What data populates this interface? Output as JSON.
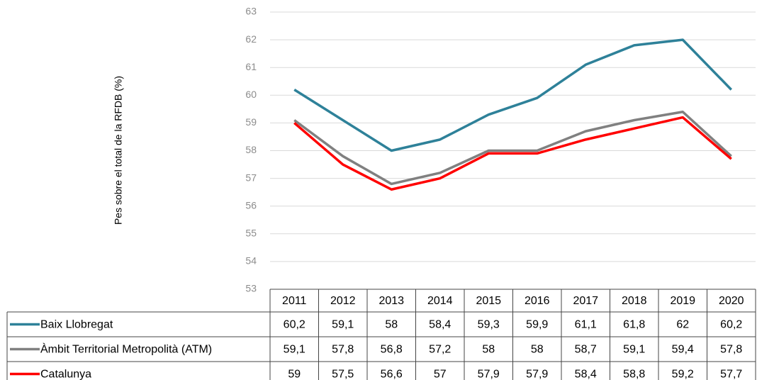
{
  "chart_data": {
    "type": "line",
    "y_label": "Pes sobre el total de la RFDB (%)",
    "categories": [
      "2011",
      "2012",
      "2013",
      "2014",
      "2015",
      "2016",
      "2017",
      "2018",
      "2019",
      "2020"
    ],
    "series": [
      {
        "name": "Baix Llobregat",
        "color": "#2e8199",
        "values": [
          60.2,
          59.1,
          58,
          58.4,
          59.3,
          59.9,
          61.1,
          61.8,
          62,
          60.2
        ],
        "value_labels": [
          "60,2",
          "59,1",
          "58",
          "58,4",
          "59,3",
          "59,9",
          "61,1",
          "61,8",
          "62",
          "60,2"
        ]
      },
      {
        "name": "Àmbit Territorial Metropolità (ATM)",
        "color": "#808080",
        "values": [
          59.1,
          57.8,
          56.8,
          57.2,
          58,
          58,
          58.7,
          59.1,
          59.4,
          57.8
        ],
        "value_labels": [
          "59,1",
          "57,8",
          "56,8",
          "57,2",
          "58",
          "58",
          "58,7",
          "59,1",
          "59,4",
          "57,8"
        ]
      },
      {
        "name": "Catalunya",
        "color": "#ff0000",
        "values": [
          59,
          57.5,
          56.6,
          57,
          57.9,
          57.9,
          58.4,
          58.8,
          59.2,
          57.7
        ],
        "value_labels": [
          "59",
          "57,5",
          "56,6",
          "57",
          "57,9",
          "57,9",
          "58,4",
          "58,8",
          "59,2",
          "57,7"
        ]
      }
    ],
    "ylim": [
      53,
      63
    ],
    "yticks": [
      53,
      54,
      55,
      56,
      57,
      58,
      59,
      60,
      61,
      62,
      63
    ],
    "grid": true
  }
}
